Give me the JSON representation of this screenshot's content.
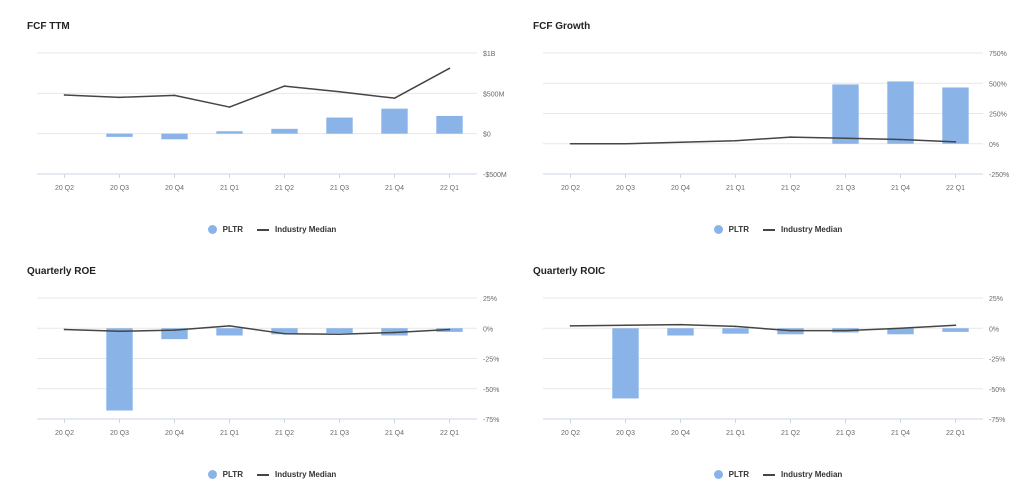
{
  "colors": {
    "bar": "#8ab4e8",
    "line": "#454545",
    "grid": "#e7e7e7",
    "axis": "#ccd4e6",
    "tick": "#6b6b6b"
  },
  "legend": {
    "series_a": "PLTR",
    "series_b": "Industry Median"
  },
  "chart_data": [
    {
      "type": "bar",
      "title": "FCF TTM",
      "categories": [
        "20 Q2",
        "20 Q3",
        "20 Q4",
        "21 Q1",
        "21 Q2",
        "21 Q3",
        "21 Q4",
        "22 Q1"
      ],
      "ylim": [
        -500000000,
        1000000000
      ],
      "ytick_values": [
        1000000000,
        500000000,
        0,
        -500000000
      ],
      "ytick_labels": [
        "$1B",
        "$500M",
        "$0",
        "-$500M"
      ],
      "series": [
        {
          "name": "PLTR",
          "type": "bar",
          "values": [
            null,
            -40000000,
            -70000000,
            30000000,
            60000000,
            200000000,
            310000000,
            220000000
          ]
        },
        {
          "name": "Industry Median",
          "type": "line",
          "values": [
            480000000,
            450000000,
            475000000,
            330000000,
            590000000,
            520000000,
            440000000,
            810000000
          ]
        }
      ]
    },
    {
      "type": "bar",
      "title": "FCF Growth",
      "categories": [
        "20 Q2",
        "20 Q3",
        "20 Q4",
        "21 Q1",
        "21 Q2",
        "21 Q3",
        "21 Q4",
        "22 Q1"
      ],
      "ylim": [
        -250,
        750
      ],
      "ytick_values": [
        750,
        500,
        250,
        0,
        -250
      ],
      "ytick_labels": [
        "750%",
        "500%",
        "250%",
        "0%",
        "-250%"
      ],
      "series": [
        {
          "name": "PLTR",
          "type": "bar",
          "values": [
            null,
            null,
            null,
            null,
            null,
            490,
            515,
            465
          ]
        },
        {
          "name": "Industry Median",
          "type": "line",
          "values": [
            0,
            0,
            12,
            25,
            55,
            45,
            35,
            15
          ]
        }
      ]
    },
    {
      "type": "bar",
      "title": "Quarterly ROE",
      "categories": [
        "20 Q2",
        "20 Q3",
        "20 Q4",
        "21 Q1",
        "21 Q2",
        "21 Q3",
        "21 Q4",
        "22 Q1"
      ],
      "ylim": [
        -75,
        25
      ],
      "ytick_values": [
        25,
        0,
        -25,
        -50,
        -75
      ],
      "ytick_labels": [
        "25%",
        "0%",
        "-25%",
        "-50%",
        "-75%"
      ],
      "series": [
        {
          "name": "PLTR",
          "type": "bar",
          "values": [
            null,
            -68,
            -9,
            -6,
            -5,
            -4,
            -6,
            -3
          ]
        },
        {
          "name": "Industry Median",
          "type": "line",
          "values": [
            -1,
            -2.5,
            -1.5,
            2,
            -4.5,
            -5,
            -3.5,
            -1
          ]
        }
      ]
    },
    {
      "type": "bar",
      "title": "Quarterly ROIC",
      "categories": [
        "20 Q2",
        "20 Q3",
        "20 Q4",
        "21 Q1",
        "21 Q2",
        "21 Q3",
        "21 Q4",
        "22 Q1"
      ],
      "ylim": [
        -75,
        25
      ],
      "ytick_values": [
        25,
        0,
        -25,
        -50,
        -75
      ],
      "ytick_labels": [
        "25%",
        "0%",
        "-25%",
        "-50%",
        "-75%"
      ],
      "series": [
        {
          "name": "PLTR",
          "type": "bar",
          "values": [
            null,
            -58,
            -6,
            -4.5,
            -5,
            -3.5,
            -5,
            -3
          ]
        },
        {
          "name": "Industry Median",
          "type": "line",
          "values": [
            2,
            2.5,
            3,
            1.5,
            -2,
            -2,
            0,
            2.5
          ]
        }
      ]
    }
  ]
}
